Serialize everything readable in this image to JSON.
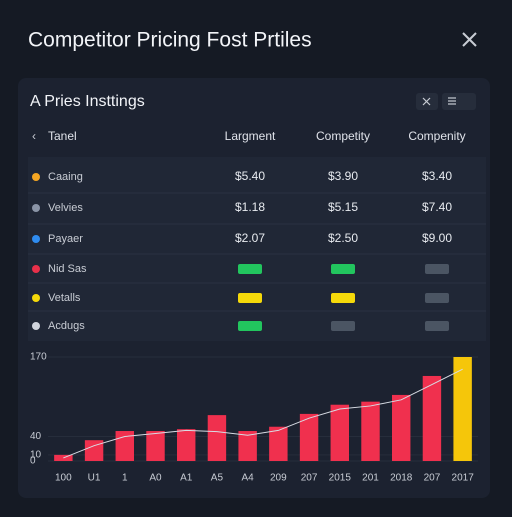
{
  "header": {
    "title": "Competitor Pricing Fost Prtiles"
  },
  "panel": {
    "title": "A Pries Insttings"
  },
  "table": {
    "columns": [
      "Tanel",
      "Largment",
      "Competity",
      "Compenity"
    ],
    "rows": [
      {
        "label": "Caaing",
        "icon_color": "#f5a623",
        "cells": [
          "$5.40",
          "$3.90",
          "$3.40"
        ]
      },
      {
        "label": "Velvies",
        "icon_color": "#8a94a6",
        "cells": [
          "$1.18",
          "$5.15",
          "$7.40"
        ]
      },
      {
        "label": "Payaer",
        "icon_color": "#2f8cf0",
        "cells": [
          "$2.07",
          "$2.50",
          "$9.00"
        ]
      },
      {
        "label": "Nid Sas",
        "icon_color": "#e8304a",
        "badges": [
          "#22c55e",
          "#22c55e",
          "#4b5563"
        ]
      },
      {
        "label": "Vetalls",
        "icon_color": "#f5d90a",
        "badges": [
          "#f5d90a",
          "#f5d90a",
          "#4b5563"
        ]
      },
      {
        "label": "Acdugs",
        "icon_color": "#d0d4dc",
        "badges": [
          "#22c55e",
          "#4b5563",
          "#4b5563"
        ]
      }
    ]
  },
  "chart_data": {
    "type": "bar",
    "categories": [
      "100",
      "U1",
      "1",
      "A0",
      "A1",
      "A5",
      "A4",
      "209",
      "207",
      "2015",
      "201",
      "2018",
      "207",
      "2017"
    ],
    "values": [
      10,
      34,
      49,
      49,
      52,
      75,
      49,
      56,
      77,
      92,
      97,
      108,
      139,
      170
    ],
    "colors": [
      "#f0304e",
      "#f0304e",
      "#f0304e",
      "#f0304e",
      "#f0304e",
      "#f0304e",
      "#f0304e",
      "#f0304e",
      "#f0304e",
      "#f0304e",
      "#f0304e",
      "#f0304e",
      "#f0304e",
      "#f5c60a"
    ],
    "line_values": [
      5,
      25,
      40,
      45,
      50,
      48,
      42,
      50,
      70,
      85,
      90,
      100,
      125,
      150
    ],
    "ylim": [
      0,
      170
    ],
    "yticks": [
      0,
      10,
      40,
      170
    ]
  }
}
